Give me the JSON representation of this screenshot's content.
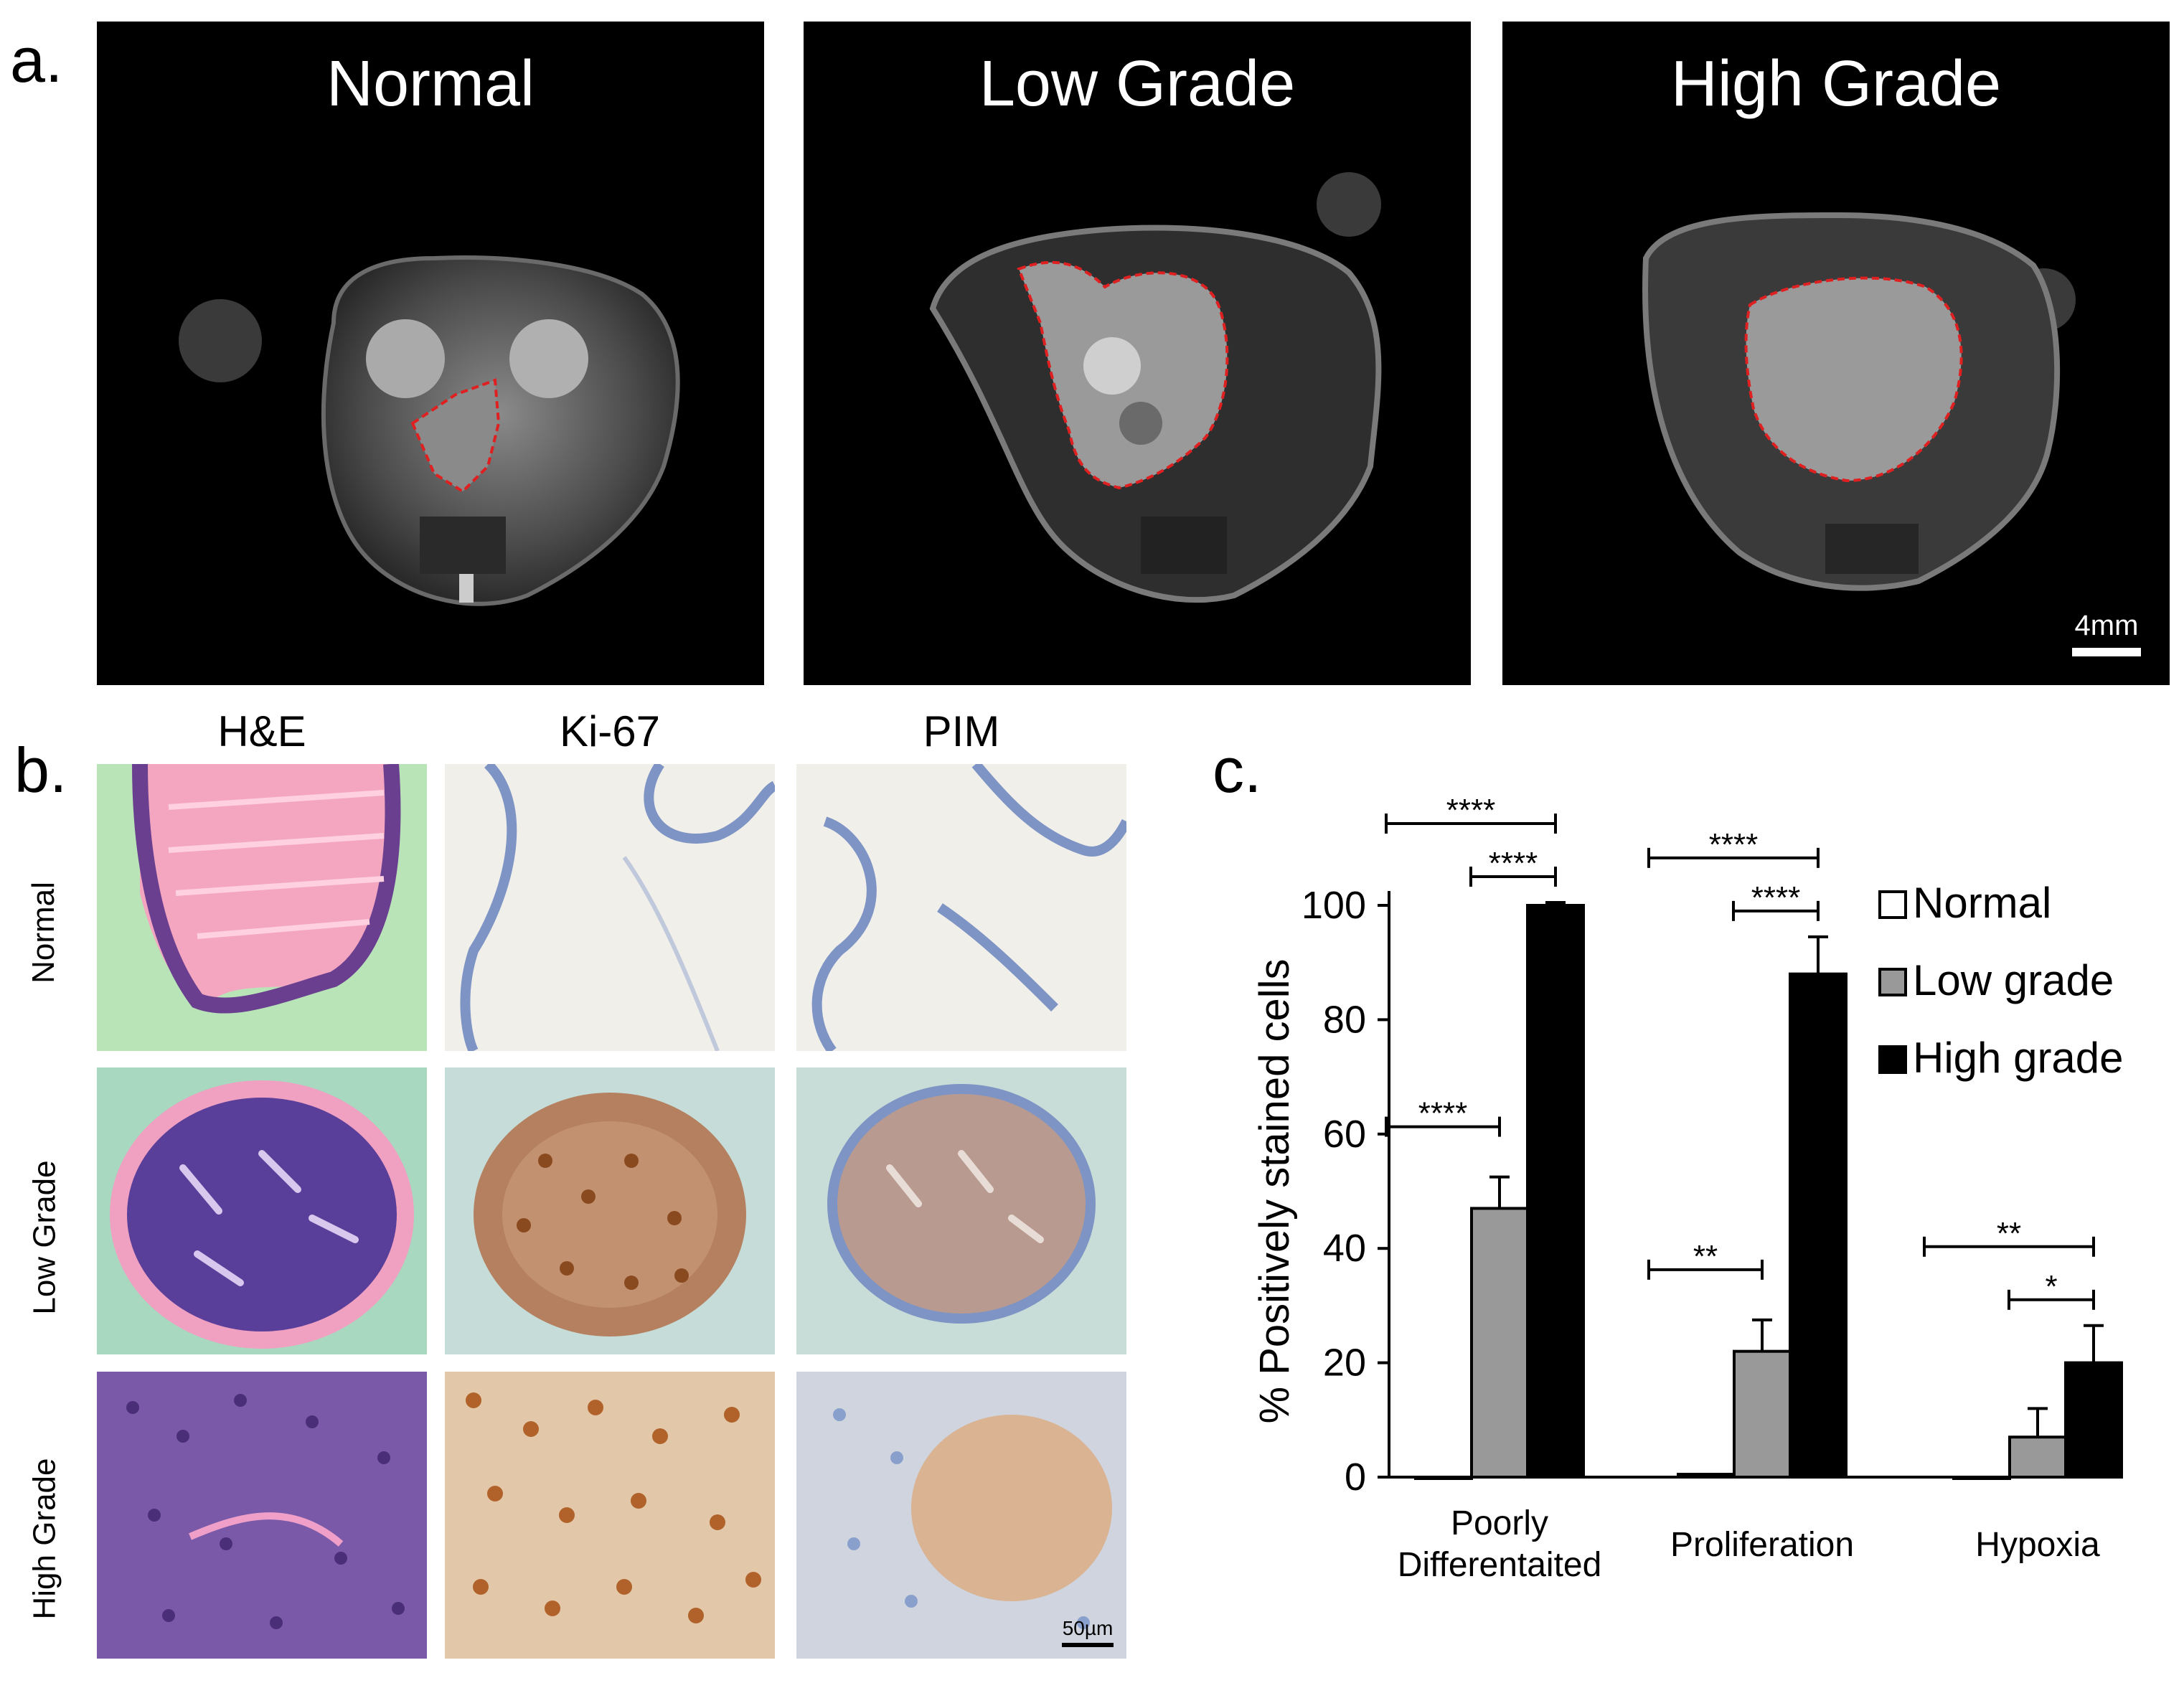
{
  "panel_a": {
    "letter": "a.",
    "images": [
      {
        "title": "Normal"
      },
      {
        "title": "Low Grade"
      },
      {
        "title": "High Grade"
      }
    ],
    "scale_bar": "4mm"
  },
  "panel_b": {
    "letter": "b.",
    "columns": [
      "H&E",
      "Ki-67",
      "PIM"
    ],
    "rows": [
      "Normal",
      "Low Grade",
      "High Grade"
    ],
    "scale_bar": "50µm"
  },
  "panel_c": {
    "letter": "c."
  },
  "chart_data": {
    "type": "bar",
    "ylabel": "% Positively stained cells",
    "xlabel": "",
    "ylim": [
      0,
      100
    ],
    "yticks": [
      0,
      20,
      40,
      60,
      80,
      100
    ],
    "categories": [
      "Poorly Differentaited",
      "Proliferation",
      "Hypoxia"
    ],
    "category_lines": [
      [
        "Poorly",
        "Differentaited"
      ],
      [
        "Proliferation"
      ],
      [
        "Hypoxia"
      ]
    ],
    "series": [
      {
        "name": "Normal",
        "color": "#ffffff",
        "values": [
          0,
          0.5,
          0
        ],
        "errors": [
          0,
          0,
          0
        ]
      },
      {
        "name": "Low grade",
        "color": "#999999",
        "values": [
          47,
          22,
          7
        ],
        "errors": [
          5.5,
          5.5,
          5
        ]
      },
      {
        "name": "High grade",
        "color": "#000000",
        "values": [
          100,
          88,
          20
        ],
        "errors": [
          0.5,
          6.5,
          6.5
        ]
      }
    ],
    "legend_position": "top-right",
    "significance": [
      {
        "category": 0,
        "from": 0,
        "to": 2,
        "label": "****"
      },
      {
        "category": 0,
        "from": 1,
        "to": 2,
        "label": "****"
      },
      {
        "category": 0,
        "from": 0,
        "to": 1,
        "label": "****"
      },
      {
        "category": 1,
        "from": 0,
        "to": 2,
        "label": "****"
      },
      {
        "category": 1,
        "from": 1,
        "to": 2,
        "label": "****"
      },
      {
        "category": 1,
        "from": 0,
        "to": 1,
        "label": "**"
      },
      {
        "category": 2,
        "from": 0,
        "to": 2,
        "label": "**"
      },
      {
        "category": 2,
        "from": 1,
        "to": 2,
        "label": "*"
      }
    ]
  }
}
